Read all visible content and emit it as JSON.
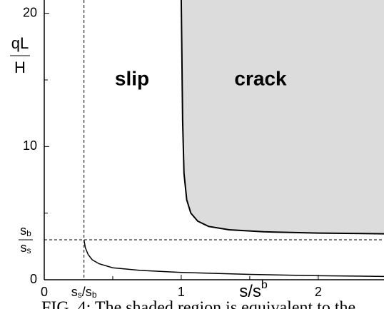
{
  "chart_data": {
    "type": "line",
    "xlim": [
      0,
      2.48
    ],
    "ylim": [
      0,
      21
    ],
    "xticks": [
      0,
      {
        "value": 0.29,
        "label": [
          "s",
          "s",
          "/s",
          "b"
        ]
      },
      1,
      2
    ],
    "yticks": [
      0,
      10,
      20,
      {
        "value": 3,
        "label": [
          "s",
          "b",
          "s",
          "s"
        ]
      }
    ],
    "xminor": [
      0.5,
      1.5
    ],
    "yminor": [
      5,
      15
    ],
    "xlabel": [
      "s/s",
      "b"
    ],
    "ylabel": [
      "qL",
      "H"
    ],
    "region_labels": [
      "slip",
      "crack"
    ],
    "caption": "FIG. 4: The shaded region is equivalent to the",
    "shade_color": "#dcdcdc",
    "series": [
      {
        "color": "#000000",
        "x": [
          0.29,
          0.3,
          0.32,
          0.35,
          0.4,
          0.5,
          0.7,
          1.0,
          1.5,
          2.0,
          2.48
        ],
        "values": [
          3.0,
          2.4,
          1.9,
          1.5,
          1.2,
          0.9,
          0.7,
          0.55,
          0.4,
          0.3,
          0.25
        ]
      },
      {
        "color": "#000000",
        "x": [
          1.0,
          1.01,
          1.02,
          1.04,
          1.07,
          1.12,
          1.2,
          1.35,
          1.6,
          2.0,
          2.48
        ],
        "values": [
          21,
          12,
          8,
          6,
          5,
          4.4,
          4.0,
          3.75,
          3.6,
          3.5,
          3.45
        ]
      }
    ]
  }
}
